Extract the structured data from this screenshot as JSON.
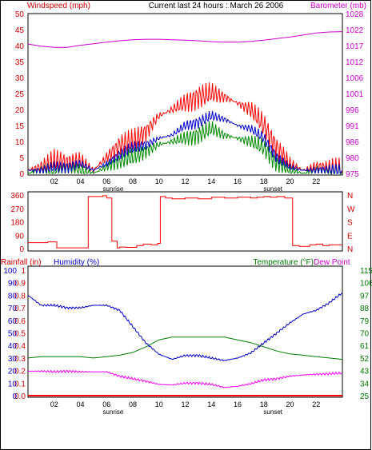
{
  "title": "Current last 24 hours : March 26 2006",
  "colors": {
    "background": "#ffffff",
    "frame": "#000000",
    "wind_axis": "#cc0000",
    "baro_axis": "#cc00cc",
    "dir_axis": "#cc0000",
    "rain_axis": "#cc0000",
    "hum_axis": "#0000cc",
    "temp_axis": "#007700",
    "dewpoint_label": "#cc00cc",
    "windspeed": "#ff0000",
    "windgust": "#0000cc",
    "windavg": "#008800",
    "barometer": "#cc00cc",
    "direction": "#ff0000",
    "rain": "#ff0000",
    "humidity": "#0000cc",
    "temperature": "#008000",
    "dewpoint": "#ff00ff"
  },
  "x_ticks": [
    "02",
    "04",
    "06",
    "08",
    "10",
    "12",
    "14",
    "16",
    "18",
    "20",
    "22"
  ],
  "annotations": {
    "sunrise": "sunrise",
    "sunset": "sunset"
  },
  "chart_data": [
    {
      "type": "line",
      "title": "Current last 24 hours : March 26 2006",
      "left_label": "Windspeed (mph)",
      "right_label": "Barometer (mb)",
      "left_ticks": [
        "0",
        "5",
        "10",
        "15",
        "20",
        "25",
        "30",
        "35",
        "40",
        "45",
        "50"
      ],
      "right_ticks": [
        "975",
        "980",
        "986",
        "991",
        "996",
        "1001",
        "1006",
        "1012",
        "1017",
        "1022",
        "1028"
      ],
      "ylim_left": [
        0,
        50
      ],
      "ylim_right": [
        975,
        1028
      ],
      "x": [
        0,
        1,
        2,
        3,
        4,
        5,
        6,
        7,
        8,
        9,
        10,
        11,
        12,
        13,
        14,
        15,
        16,
        17,
        18,
        19,
        20,
        21,
        22,
        23,
        24
      ],
      "series": [
        {
          "key": "windspeed",
          "values": [
            1,
            2,
            4,
            3,
            4,
            1,
            5,
            9,
            10,
            13,
            18,
            20,
            22,
            24,
            25,
            24,
            22,
            20,
            15,
            8,
            3,
            1,
            2,
            1,
            1
          ]
        },
        {
          "key": "windgust",
          "values": [
            1,
            1,
            2,
            2,
            3,
            1,
            3,
            6,
            8,
            9,
            11,
            12,
            15,
            16,
            18,
            17,
            15,
            14,
            11,
            5,
            2,
            1,
            1,
            1,
            1
          ]
        },
        {
          "key": "windavg",
          "values": [
            0,
            1,
            1,
            1,
            1,
            0,
            2,
            4,
            5,
            7,
            9,
            10,
            11,
            12,
            14,
            12,
            11,
            10,
            8,
            3,
            1,
            0,
            1,
            0,
            0
          ]
        },
        {
          "key": "barometer",
          "values": [
            1017.9,
            1017.2,
            1016.8,
            1016.8,
            1017.5,
            1018.0,
            1018.5,
            1019.0,
            1019.3,
            1019.5,
            1019.5,
            1019.3,
            1019.2,
            1019.0,
            1018.7,
            1018.5,
            1018.5,
            1018.8,
            1019.2,
            1019.7,
            1020.2,
            1020.9,
            1021.6,
            1021.9,
            1022.0
          ]
        }
      ],
      "annotations": [
        "sunrise",
        "sunset"
      ]
    },
    {
      "type": "line",
      "left_ticks": [
        "0",
        "90",
        "180",
        "270",
        "360"
      ],
      "right_ticks": [
        "N",
        "E",
        "S",
        "W",
        "N"
      ],
      "ylim": [
        0,
        360
      ],
      "series": [
        {
          "key": "direction",
          "x": [
            0,
            1.5,
            2.2,
            4.0,
            4.6,
            5.7,
            6.0,
            6.4,
            6.8,
            7.0,
            7.5,
            8.3,
            8.8,
            9.4,
            9.9,
            10.1,
            10.5,
            11,
            12,
            13,
            14,
            15,
            16,
            17,
            17.5,
            18,
            18.5,
            19,
            19.6,
            20.2,
            20.7,
            21.5,
            22,
            22.5,
            23,
            23.6
          ],
          "values": [
            40,
            45,
            5,
            5,
            350,
            355,
            340,
            50,
            5,
            10,
            8,
            20,
            30,
            25,
            35,
            350,
            340,
            335,
            340,
            335,
            345,
            340,
            345,
            340,
            345,
            350,
            345,
            350,
            340,
            20,
            15,
            25,
            30,
            20,
            25,
            25
          ]
        }
      ]
    },
    {
      "type": "line",
      "rain_label": "Rainfall (in)",
      "humidity_label": "Humidity (%)",
      "temperature_label": "Temperature (°F)",
      "dewpoint_label": "Dew Point",
      "rain_ticks": [
        "0.0",
        "0.1",
        "0.2",
        "0.3",
        "0.4",
        "0.5",
        "0.6",
        "0.7",
        "0.8",
        "0.9",
        "1"
      ],
      "hum_ticks": [
        "0",
        "10",
        "20",
        "30",
        "40",
        "50",
        "60",
        "70",
        "80",
        "90",
        "100"
      ],
      "temp_ticks": [
        "25",
        "34",
        "43",
        "52",
        "61",
        "70",
        "79",
        "88",
        "97",
        "106",
        "115"
      ],
      "ylim_humidity": [
        0,
        100
      ],
      "ylim_temperature": [
        25,
        115
      ],
      "x": [
        0,
        1,
        2,
        3,
        4,
        5,
        6,
        7,
        8,
        9,
        10,
        11,
        12,
        13,
        14,
        15,
        16,
        17,
        18,
        19,
        20,
        21,
        22,
        23,
        24
      ],
      "series": [
        {
          "key": "humidity",
          "values": [
            80,
            72,
            72,
            70,
            70,
            72,
            72,
            68,
            55,
            42,
            33,
            29,
            32,
            32,
            30,
            28,
            30,
            34,
            42,
            50,
            58,
            65,
            68,
            74,
            82
          ]
        },
        {
          "key": "temperature",
          "values": [
            52,
            53,
            53,
            53,
            53,
            52,
            53,
            54,
            56,
            60,
            65,
            67,
            67,
            67,
            67,
            67,
            65,
            63,
            60,
            57,
            55,
            54,
            53,
            52,
            51
          ]
        },
        {
          "key": "dewpoint",
          "values": [
            19.5,
            19.5,
            19.0,
            19.5,
            19.0,
            19.0,
            19.0,
            15.5,
            13.5,
            11.5,
            9.0,
            8.5,
            10.0,
            10.0,
            9.0,
            6.5,
            7.5,
            9.5,
            12.5,
            13.5,
            15.5,
            16.5,
            17.0,
            17.5,
            18.0
          ]
        },
        {
          "key": "rain",
          "values": [
            0,
            0,
            0,
            0,
            0,
            0,
            0,
            0,
            0,
            0,
            0,
            0,
            0,
            0,
            0,
            0,
            0,
            0,
            0,
            0,
            0,
            0,
            0,
            0,
            0
          ]
        }
      ],
      "annotations": [
        "sunrise",
        "sunset"
      ]
    }
  ]
}
